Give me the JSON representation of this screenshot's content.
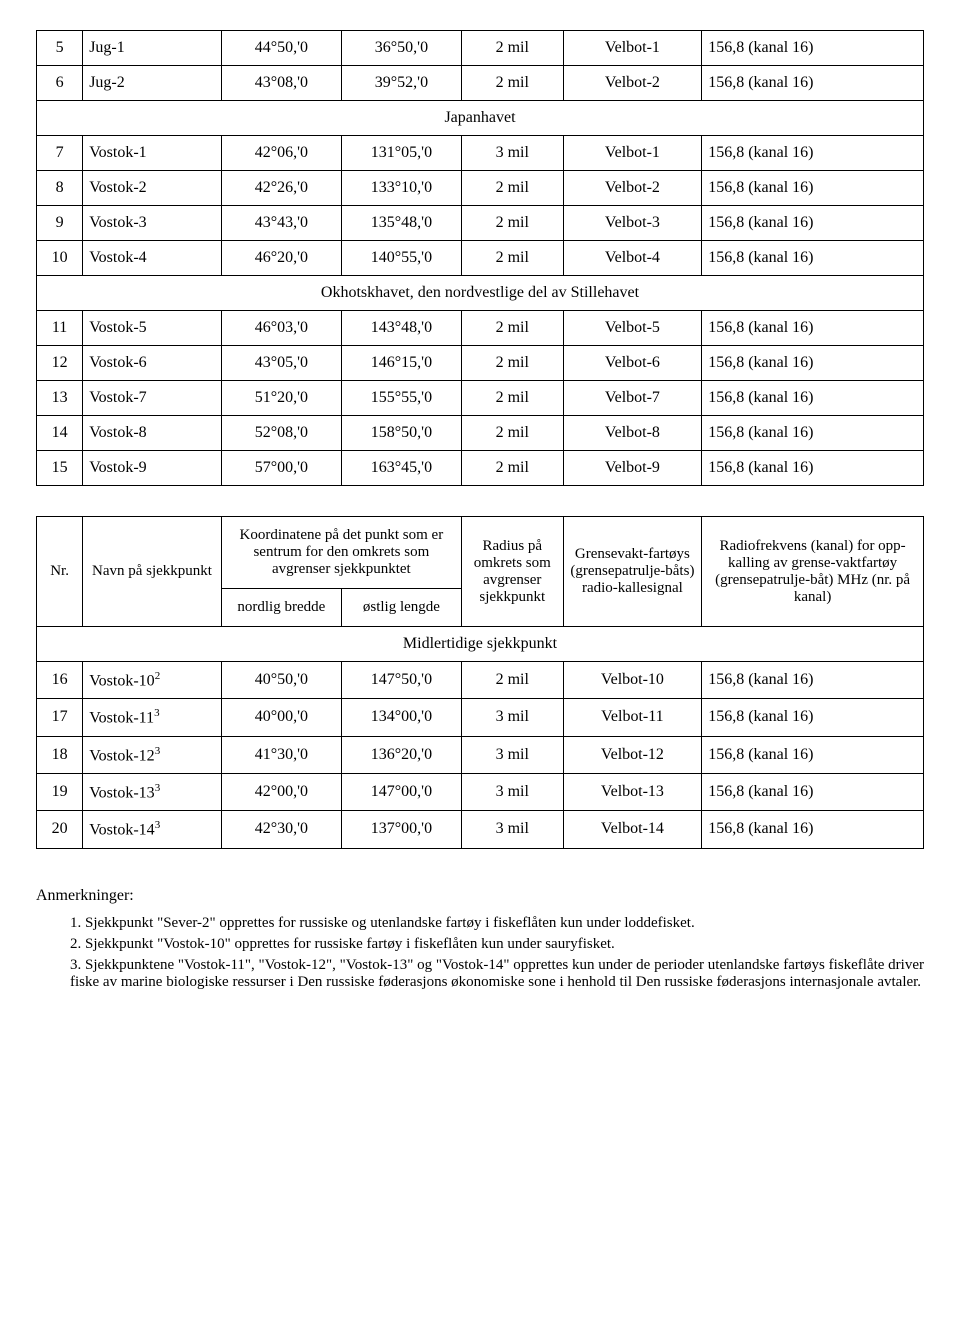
{
  "table1": {
    "rows": [
      {
        "n": "5",
        "name": "Jug-1",
        "lat": "44°50,'0",
        "lon": "36°50,'0",
        "rad": "2 mil",
        "sig": "Velbot-1",
        "freq": "156,8 (kanal 16)"
      },
      {
        "n": "6",
        "name": "Jug-2",
        "lat": "43°08,'0",
        "lon": "39°52,'0",
        "rad": "2 mil",
        "sig": "Velbot-2",
        "freq": "156,8 (kanal 16)"
      }
    ],
    "section1": "Japanhavet",
    "rows2": [
      {
        "n": "7",
        "name": "Vostok-1",
        "lat": "42°06,'0",
        "lon": "131°05,'0",
        "rad": "3 mil",
        "sig": "Velbot-1",
        "freq": "156,8 (kanal 16)"
      },
      {
        "n": "8",
        "name": "Vostok-2",
        "lat": "42°26,'0",
        "lon": "133°10,'0",
        "rad": "2 mil",
        "sig": "Velbot-2",
        "freq": "156,8 (kanal 16)"
      },
      {
        "n": "9",
        "name": "Vostok-3",
        "lat": "43°43,'0",
        "lon": "135°48,'0",
        "rad": "2 mil",
        "sig": "Velbot-3",
        "freq": "156,8 (kanal 16)"
      },
      {
        "n": "10",
        "name": "Vostok-4",
        "lat": "46°20,'0",
        "lon": "140°55,'0",
        "rad": "2 mil",
        "sig": "Velbot-4",
        "freq": "156,8 (kanal 16)"
      }
    ],
    "section2": "Okhotskhavet, den nordvestlige del av Stillehavet",
    "rows3": [
      {
        "n": "11",
        "name": "Vostok-5",
        "lat": "46°03,'0",
        "lon": "143°48,'0",
        "rad": "2 mil",
        "sig": "Velbot-5",
        "freq": "156,8 (kanal 16)"
      },
      {
        "n": "12",
        "name": "Vostok-6",
        "lat": "43°05,'0",
        "lon": "146°15,'0",
        "rad": "2 mil",
        "sig": "Velbot-6",
        "freq": "156,8 (kanal 16)"
      },
      {
        "n": "13",
        "name": "Vostok-7",
        "lat": "51°20,'0",
        "lon": "155°55,'0",
        "rad": "2 mil",
        "sig": "Velbot-7",
        "freq": "156,8 (kanal 16)"
      },
      {
        "n": "14",
        "name": "Vostok-8",
        "lat": "52°08,'0",
        "lon": "158°50,'0",
        "rad": "2 mil",
        "sig": "Velbot-8",
        "freq": "156,8 (kanal 16)"
      },
      {
        "n": "15",
        "name": "Vostok-9",
        "lat": "57°00,'0",
        "lon": "163°45,'0",
        "rad": "2 mil",
        "sig": "Velbot-9",
        "freq": "156,8 (kanal 16)"
      }
    ]
  },
  "table2": {
    "headers": {
      "nr": "Nr.",
      "name": "Navn på sjekkpunkt",
      "coord_top": "Koordinatene på det punkt som er sentrum for den omkrets som avgrenser sjekkpunktet",
      "lat": "nordlig bredde",
      "lon": "østlig lengde",
      "rad": "Radius på omkrets som avgrenser sjekkpunkt",
      "sig": "Grensevakt-fartøys (grensepatrulje-båts) radio-kallesignal",
      "freq": "Radiofrekvens (kanal) for opp-kalling av grense-vaktfartøy (grensepatrulje-båt) MHz (nr. på kanal)"
    },
    "section": "Midlertidige sjekkpunkt",
    "rows": [
      {
        "n": "16",
        "name": "Vostok-10",
        "sup": "2",
        "lat": "40°50,'0",
        "lon": "147°50,'0",
        "rad": "2 mil",
        "sig": "Velbot-10",
        "freq": "156,8 (kanal 16)"
      },
      {
        "n": "17",
        "name": "Vostok-11",
        "sup": "3",
        "lat": "40°00,'0",
        "lon": "134°00,'0",
        "rad": "3 mil",
        "sig": "Velbot-11",
        "freq": "156,8 (kanal 16)"
      },
      {
        "n": "18",
        "name": "Vostok-12",
        "sup": "3",
        "lat": "41°30,'0",
        "lon": "136°20,'0",
        "rad": "3 mil",
        "sig": "Velbot-12",
        "freq": "156,8 (kanal 16)"
      },
      {
        "n": "19",
        "name": "Vostok-13",
        "sup": "3",
        "lat": "42°00,'0",
        "lon": "147°00,'0",
        "rad": "3 mil",
        "sig": "Velbot-13",
        "freq": "156,8 (kanal 16)"
      },
      {
        "n": "20",
        "name": "Vostok-14",
        "sup": "3",
        "lat": "42°30,'0",
        "lon": "137°00,'0",
        "rad": "3 mil",
        "sig": "Velbot-14",
        "freq": "156,8 (kanal 16)"
      }
    ]
  },
  "notes": {
    "header": "Anmerkninger:",
    "items": [
      "1. Sjekkpunkt \"Sever-2\" opprettes for russiske og utenlandske fartøy i fiskeflåten kun under loddefisket.",
      "2. Sjekkpunkt \"Vostok-10\" opprettes for russiske fartøy i fiskeflåten kun under sauryfisket.",
      "3. Sjekkpunktene \"Vostok-11\", \"Vostok-12\", \"Vostok-13\" og \"Vostok-14\" opprettes kun under de perioder utenlandske fartøys fiskeflåte driver fiske av marine biologiske ressurser i Den russiske føderasjons økonomiske sone i henhold til Den russiske føderasjons internasjonale avtaler."
    ]
  }
}
